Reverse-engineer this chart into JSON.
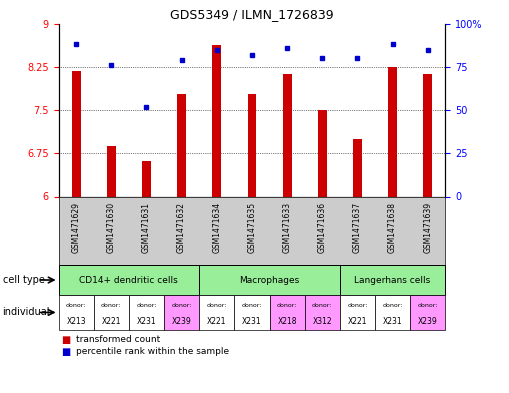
{
  "title": "GDS5349 / ILMN_1726839",
  "samples": [
    "GSM1471629",
    "GSM1471630",
    "GSM1471631",
    "GSM1471632",
    "GSM1471634",
    "GSM1471635",
    "GSM1471633",
    "GSM1471636",
    "GSM1471637",
    "GSM1471638",
    "GSM1471639"
  ],
  "bar_values": [
    8.18,
    6.88,
    6.62,
    7.78,
    8.62,
    7.78,
    8.12,
    7.5,
    7.0,
    8.25,
    8.12
  ],
  "dot_values": [
    88,
    76,
    52,
    79,
    85,
    82,
    86,
    80,
    80,
    88,
    85
  ],
  "bar_color": "#cc0000",
  "dot_color": "#0000cc",
  "ylim_left": [
    6,
    9
  ],
  "ylim_right": [
    0,
    100
  ],
  "yticks_left": [
    6,
    6.75,
    7.5,
    8.25,
    9
  ],
  "ytick_labels_left": [
    "6",
    "6.75",
    "7.5",
    "8.25",
    "9"
  ],
  "yticks_right": [
    0,
    25,
    50,
    75,
    100
  ],
  "ytick_labels_right": [
    "0",
    "25",
    "50",
    "75",
    "100%"
  ],
  "hlines": [
    6.75,
    7.5,
    8.25
  ],
  "ct_regions": [
    {
      "label": "CD14+ dendritic cells",
      "start": 0,
      "end": 4,
      "color": "#99ee99"
    },
    {
      "label": "Macrophages",
      "start": 4,
      "end": 8,
      "color": "#99ee99"
    },
    {
      "label": "Langerhans cells",
      "start": 8,
      "end": 11,
      "color": "#99ee99"
    }
  ],
  "individuals": [
    "X213",
    "X221",
    "X231",
    "X239",
    "X221",
    "X231",
    "X218",
    "X312",
    "X221",
    "X231",
    "X239"
  ],
  "ind_colors": [
    "#ffffff",
    "#ffffff",
    "#ffffff",
    "#ff99ff",
    "#ffffff",
    "#ffffff",
    "#ff99ff",
    "#ff99ff",
    "#ffffff",
    "#ffffff",
    "#ff99ff"
  ],
  "legend_bar_label": "transformed count",
  "legend_dot_label": "percentile rank within the sample",
  "cell_type_label": "cell type",
  "individual_label": "individual",
  "bg_color": "#ffffff",
  "sample_bg_color": "#cccccc",
  "bar_width": 0.25
}
